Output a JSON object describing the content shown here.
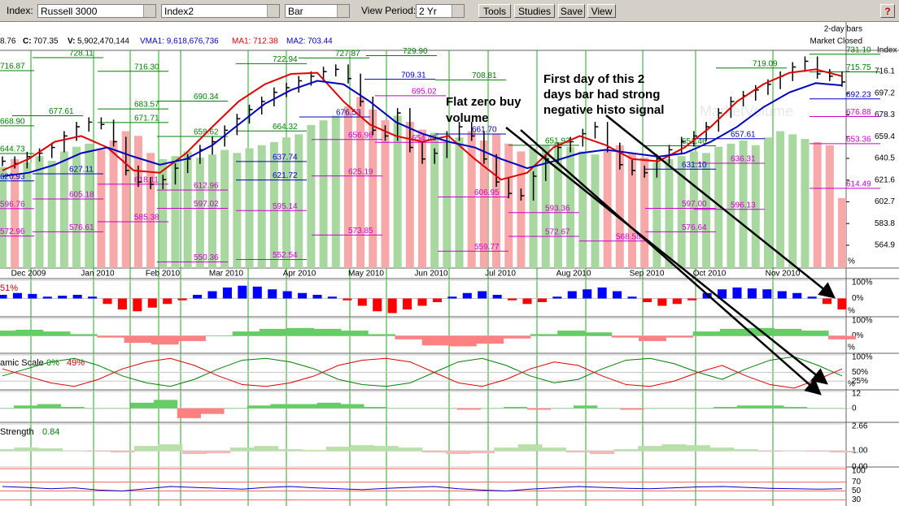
{
  "toolbar": {
    "index_label": "Index:",
    "index_value": "Russell 3000",
    "index2_value": "Index2",
    "style_value": "Bar",
    "period_label": "View Period:",
    "period_value": "2 Yr",
    "buttons": [
      "Tools",
      "Studies",
      "Save",
      "View"
    ],
    "help": "?"
  },
  "info": {
    "open_partial": "8.76",
    "c_label": "C:",
    "c_value": "707.35",
    "v_label": "V:",
    "v_value": "5,902,470,144",
    "vma1": "VMA1: 9,618,676,736",
    "ma1": "MA1: 712.38",
    "ma2": "MA2: 703.44",
    "bars_note": "2-day bars",
    "market_status": "Market Closed",
    "axis_name": "Index"
  },
  "chart_data": {
    "type": "bar",
    "ylim": [
      545.1,
      734.5
    ],
    "yticks": [
      716.1,
      697.2,
      678.3,
      659.4,
      640.5,
      621.6,
      602.7,
      583.8,
      564.9
    ],
    "months": [
      "Dec 2009",
      "Jan 2010",
      "Feb 2010",
      "Mar 2010",
      "Apr 2010",
      "May 2010",
      "Jun 2010",
      "Jul 2010",
      "Aug 2010",
      "Sep 2010",
      "Oct 2010",
      "Nov 2010"
    ],
    "closes": [
      638,
      636,
      642,
      645,
      650,
      660,
      668,
      672,
      670,
      655,
      630,
      620,
      618,
      622,
      632,
      640,
      648,
      655,
      665,
      675,
      683,
      690,
      698,
      702,
      708,
      712,
      716,
      718,
      710,
      690,
      665,
      660,
      680,
      650,
      640,
      645,
      660,
      668,
      660,
      640,
      620,
      610,
      608,
      625,
      640,
      650,
      655,
      662,
      668,
      650,
      635,
      630,
      628,
      640,
      648,
      655,
      660,
      668,
      680,
      690,
      695,
      700,
      705,
      712,
      720,
      725,
      714,
      712,
      707
    ],
    "volume": [
      6.5,
      7,
      6.8,
      7.2,
      6.9,
      7.5,
      7.8,
      8,
      7.6,
      8.2,
      8.8,
      8.5,
      7.4,
      7,
      7.2,
      7.5,
      7.1,
      7.3,
      7.6,
      7.4,
      7.7,
      7.9,
      8.1,
      8.4,
      8.6,
      9.2,
      9.5,
      9.8,
      10.4,
      11,
      10.2,
      9.5,
      9.8,
      9.4,
      8.9,
      8.7,
      8.1,
      8.4,
      8.8,
      8.2,
      8.6,
      8,
      7.5,
      7.7,
      7.9,
      8.1,
      7.8,
      7.5,
      7.3,
      7.6,
      7.9,
      7.4,
      7.1,
      6.8,
      7,
      7.2,
      7.5,
      7.4,
      7.8,
      8,
      8.2,
      7.9,
      8.4,
      8.8,
      8.6,
      8.3,
      8.1,
      7.9,
      4.5
    ],
    "volume_lim": [
      0,
      14
    ],
    "volume_up_color": "#a8d8a0",
    "volume_down_color": "#f7a8a8",
    "bar_color": "#000000",
    "ma1": {
      "name": "MA1",
      "color": "#e00000",
      "values": [
        630,
        640,
        655,
        660,
        650,
        630,
        628,
        645,
        668,
        690,
        705,
        714,
        715,
        690,
        670,
        660,
        655,
        660,
        640,
        622,
        628,
        650,
        660,
        652,
        640,
        638,
        650,
        668,
        690,
        705,
        715,
        718,
        712
      ]
    },
    "ma2": {
      "name": "MA2",
      "color": "#0000c0",
      "values": [
        625,
        628,
        635,
        645,
        650,
        642,
        635,
        640,
        652,
        670,
        688,
        700,
        708,
        705,
        690,
        672,
        662,
        655,
        650,
        640,
        632,
        638,
        645,
        648,
        645,
        642,
        645,
        655,
        668,
        685,
        698,
        706,
        704
      ]
    },
    "green_levels": [
      728.11,
      716.87,
      {
        "value": 716.3,
        "label": "716.30"
      },
      677.61,
      683.57,
      671.71,
      {
        "value": 668.9,
        "label": "668.90"
      },
      690.34,
      722.94,
      727.87,
      {
        "value": 729.9,
        "label": "729.90"
      },
      708.81,
      664.32,
      659.62,
      651.93,
      651.46,
      719.09,
      715.75,
      {
        "value": 731.1,
        "label": "731.10"
      },
      644.73
    ],
    "blue_levels": [
      709.31,
      676.53,
      637.74,
      627.11,
      620.93,
      621.72,
      {
        "value": 661.7,
        "label": "661.70"
      },
      657.61,
      {
        "value": 631.1,
        "label": "631.10"
      },
      692.23
    ],
    "magenta_levels": [
      695.02,
      656.96,
      618.11,
      612.96,
      605.18,
      597.02,
      595.14,
      596.76,
      585.38,
      576.61,
      572.96,
      573.85,
      552.54,
      550.36,
      559.77,
      572.67,
      593.36,
      606.95,
      568.58,
      576.64,
      {
        "value": 597,
        "label": "597.00"
      },
      596.13,
      614.49,
      636.31,
      653.36,
      676.88,
      625.19,
      654.43
    ],
    "level_colors": {
      "green": "#008000",
      "blue": "#0000c0",
      "magenta": "#cc00cc"
    },
    "watermark": "MarketVolume",
    "annotations": [
      "Flat zero buy",
      "volume",
      "First day of this 2",
      "days bar had strong",
      "negative histo signal"
    ],
    "percent_label": "%",
    "panels": [
      {
        "type": "bar",
        "ylim": [
          -100,
          100
        ],
        "yticks": [
          {
            "value": 100,
            "label": "100%"
          },
          {
            "value": 0,
            "label": "0%"
          }
        ],
        "pos_color": "#0000ff",
        "neg_color": "#ff0000",
        "labels": [
          {
            "text": "51%",
            "color": "#cc0000"
          }
        ],
        "values": [
          20,
          30,
          25,
          10,
          15,
          20,
          10,
          -30,
          -60,
          -70,
          -50,
          -30,
          -10,
          20,
          40,
          60,
          70,
          65,
          50,
          40,
          30,
          20,
          10,
          -10,
          -40,
          -70,
          -80,
          -60,
          -40,
          -20,
          10,
          30,
          40,
          20,
          -10,
          -30,
          -20,
          10,
          40,
          50,
          60,
          40,
          10,
          -20,
          -40,
          -30,
          -10,
          30,
          50,
          60,
          55,
          50,
          40,
          30,
          10,
          -30,
          -60
        ]
      },
      {
        "type": "column",
        "ylim": [
          -100,
          100
        ],
        "yticks": [
          {
            "value": 100,
            "label": "100%"
          },
          {
            "value": 0,
            "label": "0%"
          }
        ],
        "pos_color": "#66cc66",
        "neg_color": "#ff8080",
        "labels": [],
        "values": [
          30,
          35,
          25,
          10,
          -10,
          -40,
          -50,
          -30,
          0,
          25,
          40,
          45,
          40,
          30,
          10,
          -20,
          -55,
          -60,
          -45,
          -15,
          10,
          30,
          20,
          -10,
          -30,
          -10,
          25,
          40,
          45,
          40,
          30,
          -20
        ]
      },
      {
        "type": "line",
        "ylim": [
          0,
          100
        ],
        "yticks": [
          {
            "value": 100,
            "label": "100%"
          },
          {
            "value": 50,
            "label": "50%"
          },
          {
            "value": 25,
            "label": "25%"
          }
        ],
        "labels": [
          {
            "text": "amic Scale",
            "color": "#000000"
          },
          {
            "text": "0%",
            "color": "#008000"
          },
          {
            "text": "49%",
            "color": "#cc0000"
          }
        ],
        "series": [
          {
            "color": "#008000",
            "values": [
              40,
              60,
              80,
              90,
              70,
              40,
              20,
              10,
              30,
              60,
              85,
              90,
              80,
              60,
              30,
              15,
              10,
              20,
              50,
              80,
              90,
              70,
              40,
              20,
              30,
              60,
              85,
              90,
              75,
              50,
              30,
              60,
              85,
              95,
              70,
              40
            ]
          },
          {
            "color": "#dd0000",
            "values": [
              60,
              40,
              20,
              10,
              30,
              60,
              80,
              90,
              70,
              40,
              15,
              10,
              20,
              40,
              70,
              85,
              90,
              80,
              50,
              20,
              10,
              30,
              60,
              80,
              70,
              40,
              15,
              10,
              25,
              50,
              70,
              40,
              15,
              5,
              30,
              60
            ]
          }
        ]
      },
      {
        "type": "column",
        "ylim": [
          -10,
          12
        ],
        "yticks": [
          12,
          0
        ],
        "pos_color": "#66cc66",
        "neg_color": "#ff8080",
        "labels": [],
        "values": [
          0,
          2,
          3,
          1,
          0,
          0,
          4,
          6,
          -7,
          -4,
          0,
          2,
          3,
          3,
          4,
          3,
          1,
          0,
          0,
          0,
          -1,
          0,
          1,
          -1,
          0,
          2,
          0,
          -1,
          0,
          0,
          0,
          1,
          2,
          2,
          1,
          0,
          0
        ]
      },
      {
        "type": "column",
        "ylim": [
          0,
          2.66
        ],
        "baseline": 1,
        "yticks": [
          2.66,
          {
            "value": 1,
            "label": "1.00"
          },
          {
            "value": 0,
            "label": "0.00"
          }
        ],
        "pos_color": "#b8e0a8",
        "neg_color": "#f5b8b8",
        "labels": [
          {
            "text": "Strength",
            "color": "#000000"
          },
          {
            "text": "0.84",
            "color": "#008000"
          }
        ],
        "values": [
          1.1,
          1.2,
          1.15,
          1,
          0.95,
          0.9,
          1.3,
          1.4,
          0.8,
          0.85,
          1.2,
          1.3,
          1.1,
          1.05,
          1.25,
          1.35,
          1.3,
          1.2,
          0.9,
          0.8,
          0.85,
          1.2,
          1.4,
          1.2,
          0.9,
          0.8,
          1.1,
          1.3,
          1.4,
          1.35,
          1.2,
          1.1,
          0.95,
          1,
          0.95,
          0.9
        ]
      },
      {
        "type": "line",
        "ylim": [
          20,
          100
        ],
        "yticks": [
          100,
          70,
          50,
          30
        ],
        "labels": [],
        "series": [
          {
            "color": "#0000cc",
            "values": [
              60,
              58,
              55,
              57,
              52,
              50,
              55,
              60,
              58,
              56,
              54,
              58,
              60,
              57,
              55,
              53,
              56,
              58,
              60,
              55,
              52,
              50,
              54,
              57,
              60,
              58,
              56,
              55,
              57,
              59,
              60,
              58,
              56,
              55,
              54,
              55
            ]
          }
        ]
      }
    ]
  }
}
